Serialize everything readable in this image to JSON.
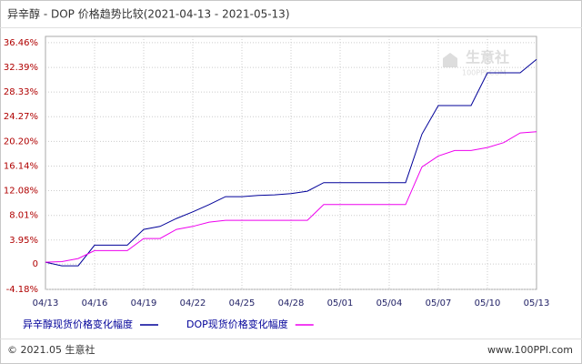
{
  "chart_data": {
    "type": "line",
    "title": "异辛醇 - DOP 价格趋势比较(2021-04-13 - 2021-05-13)",
    "categories": [
      "04/13",
      null,
      null,
      "04/16",
      null,
      null,
      "04/19",
      null,
      null,
      "04/22",
      null,
      null,
      "04/25",
      null,
      null,
      "04/28",
      null,
      null,
      "05/01",
      null,
      null,
      "05/04",
      null,
      null,
      "05/07",
      null,
      null,
      "05/10",
      null,
      null,
      "05/13"
    ],
    "series": [
      {
        "name": "异辛醇现货价格变化幅度",
        "color": "#000099",
        "values": [
          0.3,
          -0.3,
          -0.3,
          3.1,
          3.1,
          3.1,
          5.7,
          6.2,
          7.5,
          8.6,
          9.8,
          11.1,
          11.1,
          11.3,
          11.4,
          11.6,
          12.0,
          13.4,
          13.4,
          13.4,
          13.4,
          13.4,
          13.4,
          21.4,
          26.1,
          26.1,
          26.1,
          31.5,
          31.5,
          31.5,
          33.7
        ]
      },
      {
        "name": "DOP现货价格变化幅度",
        "color": "#ee00ee",
        "values": [
          0.3,
          0.4,
          0.9,
          2.2,
          2.2,
          2.2,
          4.2,
          4.2,
          5.7,
          6.2,
          6.9,
          7.2,
          7.2,
          7.2,
          7.2,
          7.2,
          7.2,
          9.8,
          9.8,
          9.8,
          9.8,
          9.8,
          9.8,
          16.0,
          17.8,
          18.7,
          18.7,
          19.2,
          20.0,
          21.6,
          21.8
        ]
      }
    ],
    "ylim": [
      -4.18,
      37.5
    ],
    "yticks": [
      {
        "value": -4.18,
        "label": "-4.18%"
      },
      0,
      {
        "value": 3.95,
        "label": "3.95%"
      },
      {
        "value": 8.01,
        "label": "8.01%"
      },
      {
        "value": 12.08,
        "label": "12.08%"
      },
      {
        "value": 16.14,
        "label": "16.14%"
      },
      {
        "value": 20.2,
        "label": "20.20%"
      },
      {
        "value": 24.27,
        "label": "24.27%"
      },
      {
        "value": 28.33,
        "label": "28.33%"
      },
      {
        "value": 32.39,
        "label": "32.39%"
      },
      {
        "value": 36.46,
        "label": "36.46%"
      }
    ],
    "grid": true,
    "watermark": [
      "生意社",
      "100PPI.COM"
    ],
    "footer": [
      "© 2021.05 生意社",
      "www.100PPI.com"
    ]
  }
}
